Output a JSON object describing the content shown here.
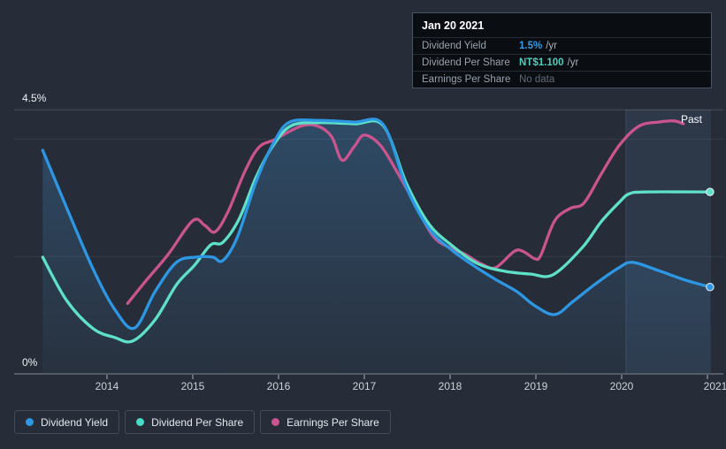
{
  "page": {
    "background": "#272d38"
  },
  "tooltip": {
    "date": "Jan 20 2021",
    "rows": [
      {
        "label": "Dividend Yield",
        "value": "1.5%",
        "unit": "/yr",
        "value_color": "#2e9fe8"
      },
      {
        "label": "Dividend Per Share",
        "value": "NT$1.100",
        "unit": "/yr",
        "value_color": "#4ecdbb"
      },
      {
        "label": "Earnings Per Share",
        "value": "No data",
        "unit": "",
        "value_color": "#626b75"
      }
    ]
  },
  "legend": {
    "items": [
      {
        "label": "Dividend Yield",
        "color": "#2d97e3"
      },
      {
        "label": "Dividend Per Share",
        "color": "#49dcc7"
      },
      {
        "label": "Earnings Per Share",
        "color": "#c9548e"
      }
    ]
  },
  "chart_data": {
    "type": "line",
    "ylim": [
      0,
      4.5
    ],
    "xlim": [
      2013.25,
      2021.04
    ],
    "y_axis_labels": {
      "top": "4.5%",
      "zero": "0%"
    },
    "gridline_values": [
      4.5,
      4.0,
      2.0,
      0.0
    ],
    "x_ticks": [
      "2014",
      "2015",
      "2016",
      "2017",
      "2018",
      "2019",
      "2020",
      "2021"
    ],
    "past_region": {
      "label": "Past",
      "start": 2020.05,
      "end": 2021.04
    },
    "series": [
      {
        "name": "Earnings Per Share",
        "color": "#c9548e",
        "end_dot": false,
        "area": false,
        "points": [
          [
            2014.24,
            1.2
          ],
          [
            2014.45,
            1.58
          ],
          [
            2014.71,
            2.03
          ],
          [
            2015.0,
            2.61
          ],
          [
            2015.14,
            2.53
          ],
          [
            2015.26,
            2.42
          ],
          [
            2015.41,
            2.76
          ],
          [
            2015.61,
            3.46
          ],
          [
            2015.77,
            3.86
          ],
          [
            2015.95,
            3.99
          ],
          [
            2016.26,
            4.22
          ],
          [
            2016.46,
            4.22
          ],
          [
            2016.62,
            4.04
          ],
          [
            2016.74,
            3.64
          ],
          [
            2016.88,
            3.87
          ],
          [
            2017.0,
            4.07
          ],
          [
            2017.19,
            3.89
          ],
          [
            2017.39,
            3.42
          ],
          [
            2017.57,
            2.95
          ],
          [
            2017.8,
            2.35
          ],
          [
            2018.01,
            2.14
          ],
          [
            2018.16,
            2.05
          ],
          [
            2018.37,
            1.87
          ],
          [
            2018.53,
            1.81
          ],
          [
            2018.75,
            2.09
          ],
          [
            2018.86,
            2.08
          ],
          [
            2018.99,
            1.96
          ],
          [
            2019.06,
            2.03
          ],
          [
            2019.22,
            2.61
          ],
          [
            2019.4,
            2.82
          ],
          [
            2019.56,
            2.91
          ],
          [
            2019.76,
            3.4
          ],
          [
            2019.97,
            3.89
          ],
          [
            2020.2,
            4.22
          ],
          [
            2020.43,
            4.29
          ],
          [
            2020.61,
            4.31
          ],
          [
            2020.72,
            4.26
          ]
        ]
      },
      {
        "name": "Dividend Per Share",
        "color": "#5ee0c9",
        "end_dot": true,
        "area": false,
        "points": [
          [
            2013.25,
            1.99
          ],
          [
            2013.53,
            1.25
          ],
          [
            2013.84,
            0.77
          ],
          [
            2014.09,
            0.62
          ],
          [
            2014.3,
            0.56
          ],
          [
            2014.56,
            0.92
          ],
          [
            2014.81,
            1.52
          ],
          [
            2015.02,
            1.85
          ],
          [
            2015.21,
            2.2
          ],
          [
            2015.35,
            2.24
          ],
          [
            2015.54,
            2.64
          ],
          [
            2015.74,
            3.36
          ],
          [
            2015.95,
            3.92
          ],
          [
            2016.15,
            4.23
          ],
          [
            2016.46,
            4.28
          ],
          [
            2016.88,
            4.26
          ],
          [
            2017.22,
            4.23
          ],
          [
            2017.49,
            3.25
          ],
          [
            2017.75,
            2.56
          ],
          [
            2018.01,
            2.2
          ],
          [
            2018.32,
            1.88
          ],
          [
            2018.63,
            1.75
          ],
          [
            2018.94,
            1.7
          ],
          [
            2019.2,
            1.69
          ],
          [
            2019.54,
            2.15
          ],
          [
            2019.76,
            2.59
          ],
          [
            2019.97,
            2.92
          ],
          [
            2020.09,
            3.07
          ],
          [
            2020.28,
            3.1
          ],
          [
            2021.03,
            3.1
          ]
        ]
      },
      {
        "name": "Dividend Yield",
        "color": "#2d97e3",
        "end_dot": true,
        "area": true,
        "points": [
          [
            2013.25,
            3.81
          ],
          [
            2013.53,
            2.83
          ],
          [
            2013.84,
            1.78
          ],
          [
            2014.09,
            1.1
          ],
          [
            2014.32,
            0.78
          ],
          [
            2014.56,
            1.4
          ],
          [
            2014.81,
            1.9
          ],
          [
            2015.04,
            1.99
          ],
          [
            2015.23,
            1.99
          ],
          [
            2015.35,
            1.93
          ],
          [
            2015.52,
            2.33
          ],
          [
            2015.74,
            3.28
          ],
          [
            2015.95,
            3.96
          ],
          [
            2016.13,
            4.29
          ],
          [
            2016.46,
            4.32
          ],
          [
            2016.88,
            4.29
          ],
          [
            2017.22,
            4.25
          ],
          [
            2017.49,
            3.18
          ],
          [
            2017.75,
            2.48
          ],
          [
            2018.01,
            2.12
          ],
          [
            2018.27,
            1.85
          ],
          [
            2018.53,
            1.61
          ],
          [
            2018.78,
            1.4
          ],
          [
            2018.99,
            1.16
          ],
          [
            2019.22,
            1.01
          ],
          [
            2019.43,
            1.23
          ],
          [
            2019.71,
            1.55
          ],
          [
            2019.97,
            1.81
          ],
          [
            2020.13,
            1.9
          ],
          [
            2020.43,
            1.76
          ],
          [
            2020.74,
            1.6
          ],
          [
            2021.03,
            1.48
          ]
        ]
      }
    ]
  }
}
